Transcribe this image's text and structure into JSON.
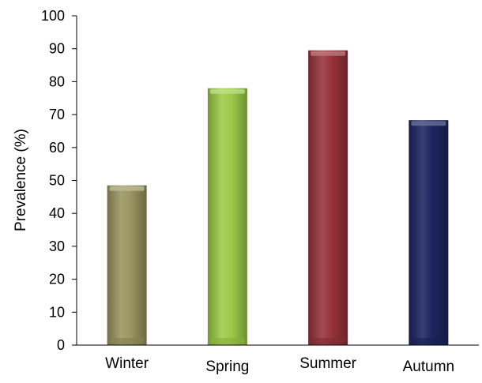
{
  "chart_data": {
    "type": "bar",
    "title": "",
    "xlabel": "",
    "ylabel": "Prevalence (%)",
    "ylim": [
      0,
      100
    ],
    "yticks": [
      0,
      10,
      20,
      30,
      40,
      50,
      60,
      70,
      80,
      90,
      100
    ],
    "categories": [
      "Winter",
      "Spring",
      "Summer",
      "Autumn"
    ],
    "values": [
      48.5,
      78,
      89.5,
      68.3
    ],
    "colors": [
      "#9a9560",
      "#9ccc48",
      "#963339",
      "#1c2560"
    ],
    "grid": false,
    "legend": "none"
  }
}
